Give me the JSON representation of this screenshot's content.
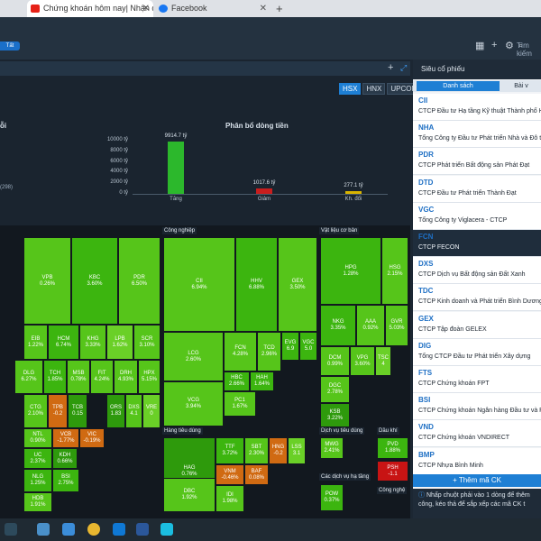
{
  "browser": {
    "tabs": [
      {
        "label": "Chứng khoán hôm nay| Nhận địn",
        "icon": "youtube-icon"
      },
      {
        "label": "Facebook",
        "icon": "facebook-icon"
      }
    ],
    "new_tab": "+"
  },
  "header": {
    "tag": "Tất",
    "search_placeholder": "Tìm kiếm"
  },
  "exchanges": [
    "HSX",
    "HNX",
    "UPCOM"
  ],
  "exchange_active": "HSX",
  "left_title": "ỗi",
  "left_value": "(298)",
  "flow_title": "Phân bổ dòng tiền",
  "chart_data": {
    "type": "bar",
    "title": "Phân bổ dòng tiền",
    "categories": [
      "Tăng",
      "Giảm",
      "Kh. đổi"
    ],
    "values": [
      9914.7,
      1017.6,
      277.1
    ],
    "value_labels": [
      "9914.7 tỷ",
      "1017.6 tỷ",
      "277.1 tỷ"
    ],
    "y_ticks": [
      "10000 tỷ",
      "8000 tỷ",
      "6000 tỷ",
      "4000 tỷ",
      "2000 tỷ",
      "0 tỷ"
    ],
    "ylim": [
      0,
      10000
    ],
    "colors": [
      "#2cb82c",
      "#c81e1e",
      "#d9b400"
    ]
  },
  "heatmap": {
    "sectors": [
      "Công nghiệp",
      "Vật liệu cơ bản",
      "Hàng tiêu dùng",
      "Dịch vụ tiêu dùng",
      "Dầu khí",
      "Các dịch vụ hạ tầng",
      "Công nghệ"
    ],
    "cells": [
      {
        "code": "VPB",
        "pct": "0.26%"
      },
      {
        "code": "KBC",
        "pct": "3.60%"
      },
      {
        "code": "PDR",
        "pct": "6.50%"
      },
      {
        "code": "EIB",
        "pct": "1.22%"
      },
      {
        "code": "HCM",
        "pct": "6.74%"
      },
      {
        "code": "KHG",
        "pct": "3.33%"
      },
      {
        "code": "LPB",
        "pct": "1.62%"
      },
      {
        "code": "SCR",
        "pct": "3.10%"
      },
      {
        "code": "DLG",
        "pct": "6.27%"
      },
      {
        "code": "TCH",
        "pct": "1.85%"
      },
      {
        "code": "MSB",
        "pct": "0.78%"
      },
      {
        "code": "FIT",
        "pct": "4.24%"
      },
      {
        "code": "DRH",
        "pct": "4.93%"
      },
      {
        "code": "HPX",
        "pct": "5.15%"
      },
      {
        "code": "CTG",
        "pct": "2.10%"
      },
      {
        "code": "TPB",
        "pct": "-0.2"
      },
      {
        "code": "TCB",
        "pct": "0.15"
      },
      {
        "code": "ORS",
        "pct": "1.83"
      },
      {
        "code": "DXS",
        "pct": "4.1"
      },
      {
        "code": "VRE",
        "pct": "0"
      },
      {
        "code": "NTL",
        "pct": "0.90%"
      },
      {
        "code": "VCB",
        "pct": "-1.77%"
      },
      {
        "code": "VIC",
        "pct": "-0.19%"
      },
      {
        "code": "UC",
        "pct": "2.37%"
      },
      {
        "code": "KDH",
        "pct": "0.66%"
      },
      {
        "code": "NLG",
        "pct": "1.25%"
      },
      {
        "code": "BSI",
        "pct": "2.75%"
      },
      {
        "code": "HDB",
        "pct": "1.91%"
      },
      {
        "code": "CII",
        "pct": "6.94%"
      },
      {
        "code": "HHV",
        "pct": "6.88%"
      },
      {
        "code": "GEX",
        "pct": "3.50%"
      },
      {
        "code": "LCG",
        "pct": "2.60%"
      },
      {
        "code": "FCN",
        "pct": "4.28%"
      },
      {
        "code": "TCD",
        "pct": "2.96%"
      },
      {
        "code": "EVG",
        "pct": "6.9"
      },
      {
        "code": "VGC",
        "pct": "5.0"
      },
      {
        "code": "VCG",
        "pct": "3.94%"
      },
      {
        "code": "HBC",
        "pct": "2.66%"
      },
      {
        "code": "HAH",
        "pct": "1.64%"
      },
      {
        "code": "PC1",
        "pct": "1.67%"
      },
      {
        "code": "HPG",
        "pct": "1.28%"
      },
      {
        "code": "HSG",
        "pct": "2.15%"
      },
      {
        "code": "NKG",
        "pct": "3.35%"
      },
      {
        "code": "AAA",
        "pct": "0.92%"
      },
      {
        "code": "GVR",
        "pct": "5.03%"
      },
      {
        "code": "DCM",
        "pct": "0.99%"
      },
      {
        "code": "VPG",
        "pct": "3.60%"
      },
      {
        "code": "TSC",
        "pct": "4"
      },
      {
        "code": "DGC",
        "pct": "2.78%"
      },
      {
        "code": "KSB",
        "pct": "3.22%"
      },
      {
        "code": "HAG",
        "pct": "0.76%"
      },
      {
        "code": "TTF",
        "pct": "3.72%"
      },
      {
        "code": "SBT",
        "pct": "2.30%"
      },
      {
        "code": "HNG",
        "pct": "-0.2"
      },
      {
        "code": "LSS",
        "pct": "3.1"
      },
      {
        "code": "VNM",
        "pct": "-0.46%"
      },
      {
        "code": "BAF",
        "pct": "0.08%"
      },
      {
        "code": "DBC",
        "pct": "1.92%"
      },
      {
        "code": "IDI",
        "pct": "1.98%"
      },
      {
        "code": "MWG",
        "pct": "2.41%"
      },
      {
        "code": "PVD",
        "pct": "1.88%"
      },
      {
        "code": "PSH",
        "pct": "-1.1"
      },
      {
        "code": "POW",
        "pct": "0.37%"
      }
    ]
  },
  "right_panel": {
    "title": "Siêu cổ phiếu",
    "tabs": [
      "Danh sách",
      "Bài v"
    ],
    "stocks": [
      {
        "code": "CII",
        "name": "CTCP Đầu tư Hạ tầng Kỹ thuật Thành phố H"
      },
      {
        "code": "NHA",
        "name": "Tổng Công ty Đầu tư Phát triển Nhà và Đô t"
      },
      {
        "code": "PDR",
        "name": "CTCP Phát triển Bất động sản Phát Đạt"
      },
      {
        "code": "DTD",
        "name": "CTCP Đầu tư Phát triển Thành Đạt"
      },
      {
        "code": "VGC",
        "name": "Tổng Công ty Viglacera - CTCP"
      },
      {
        "code": "FCN",
        "name": "CTCP FECON"
      },
      {
        "code": "DXS",
        "name": "CTCP Dịch vụ Bất động sản Đất Xanh"
      },
      {
        "code": "TDC",
        "name": "CTCP Kinh doanh và Phát triển Bình Dương"
      },
      {
        "code": "GEX",
        "name": "CTCP Tập đoàn GELEX"
      },
      {
        "code": "DIG",
        "name": "Tổng CTCP Đầu tư Phát triển Xây dựng"
      },
      {
        "code": "FTS",
        "name": "CTCP Chứng khoán FPT"
      },
      {
        "code": "BSI",
        "name": "CTCP Chứng khoán Ngân hàng Đầu tư và P"
      },
      {
        "code": "VND",
        "name": "CTCP Chứng khoán VNDIRECT"
      },
      {
        "code": "BMP",
        "name": "CTCP Nhựa Bình Minh"
      }
    ],
    "add_button": "+ Thêm mã CK",
    "hint": "Nhấp chuột phải vào 1 dòng để thêm công, kéo thả để sắp xếp các mã CK t"
  }
}
